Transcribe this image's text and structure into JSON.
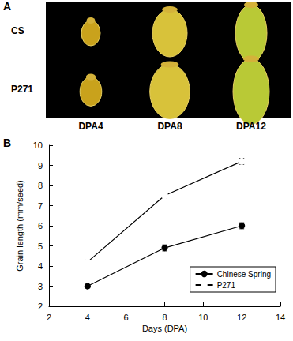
{
  "panel_labels": [
    "A",
    "B"
  ],
  "image_panel": {
    "rows": [
      "CS",
      "P271"
    ],
    "columns": [
      "DPA4",
      "DPA8",
      "DPA12"
    ]
  },
  "chart_data": {
    "type": "line",
    "x_label": "Days (DPA)",
    "y_label": "Grain length (mm/seed)",
    "xlim": [
      2,
      14
    ],
    "xticks": [
      2,
      4,
      6,
      8,
      10,
      12,
      14
    ],
    "ylim": [
      2,
      10
    ],
    "yticks": [
      2,
      3,
      4,
      5,
      6,
      7,
      8,
      9,
      10
    ],
    "x": [
      4,
      8,
      12
    ],
    "grid": false,
    "legend": "bottom-right",
    "series": [
      {
        "name": "Chinese Spring",
        "color": "#000000",
        "marker": "circle",
        "values": [
          3.0,
          4.9,
          6.0
        ],
        "errors": [
          0.08,
          0.15,
          0.15
        ]
      },
      {
        "name": "P271",
        "color": "#000000",
        "marker": "open_circle",
        "values": [
          4.2,
          7.5,
          9.2
        ],
        "errors": [
          0.1,
          0.12,
          0.15
        ]
      }
    ]
  }
}
